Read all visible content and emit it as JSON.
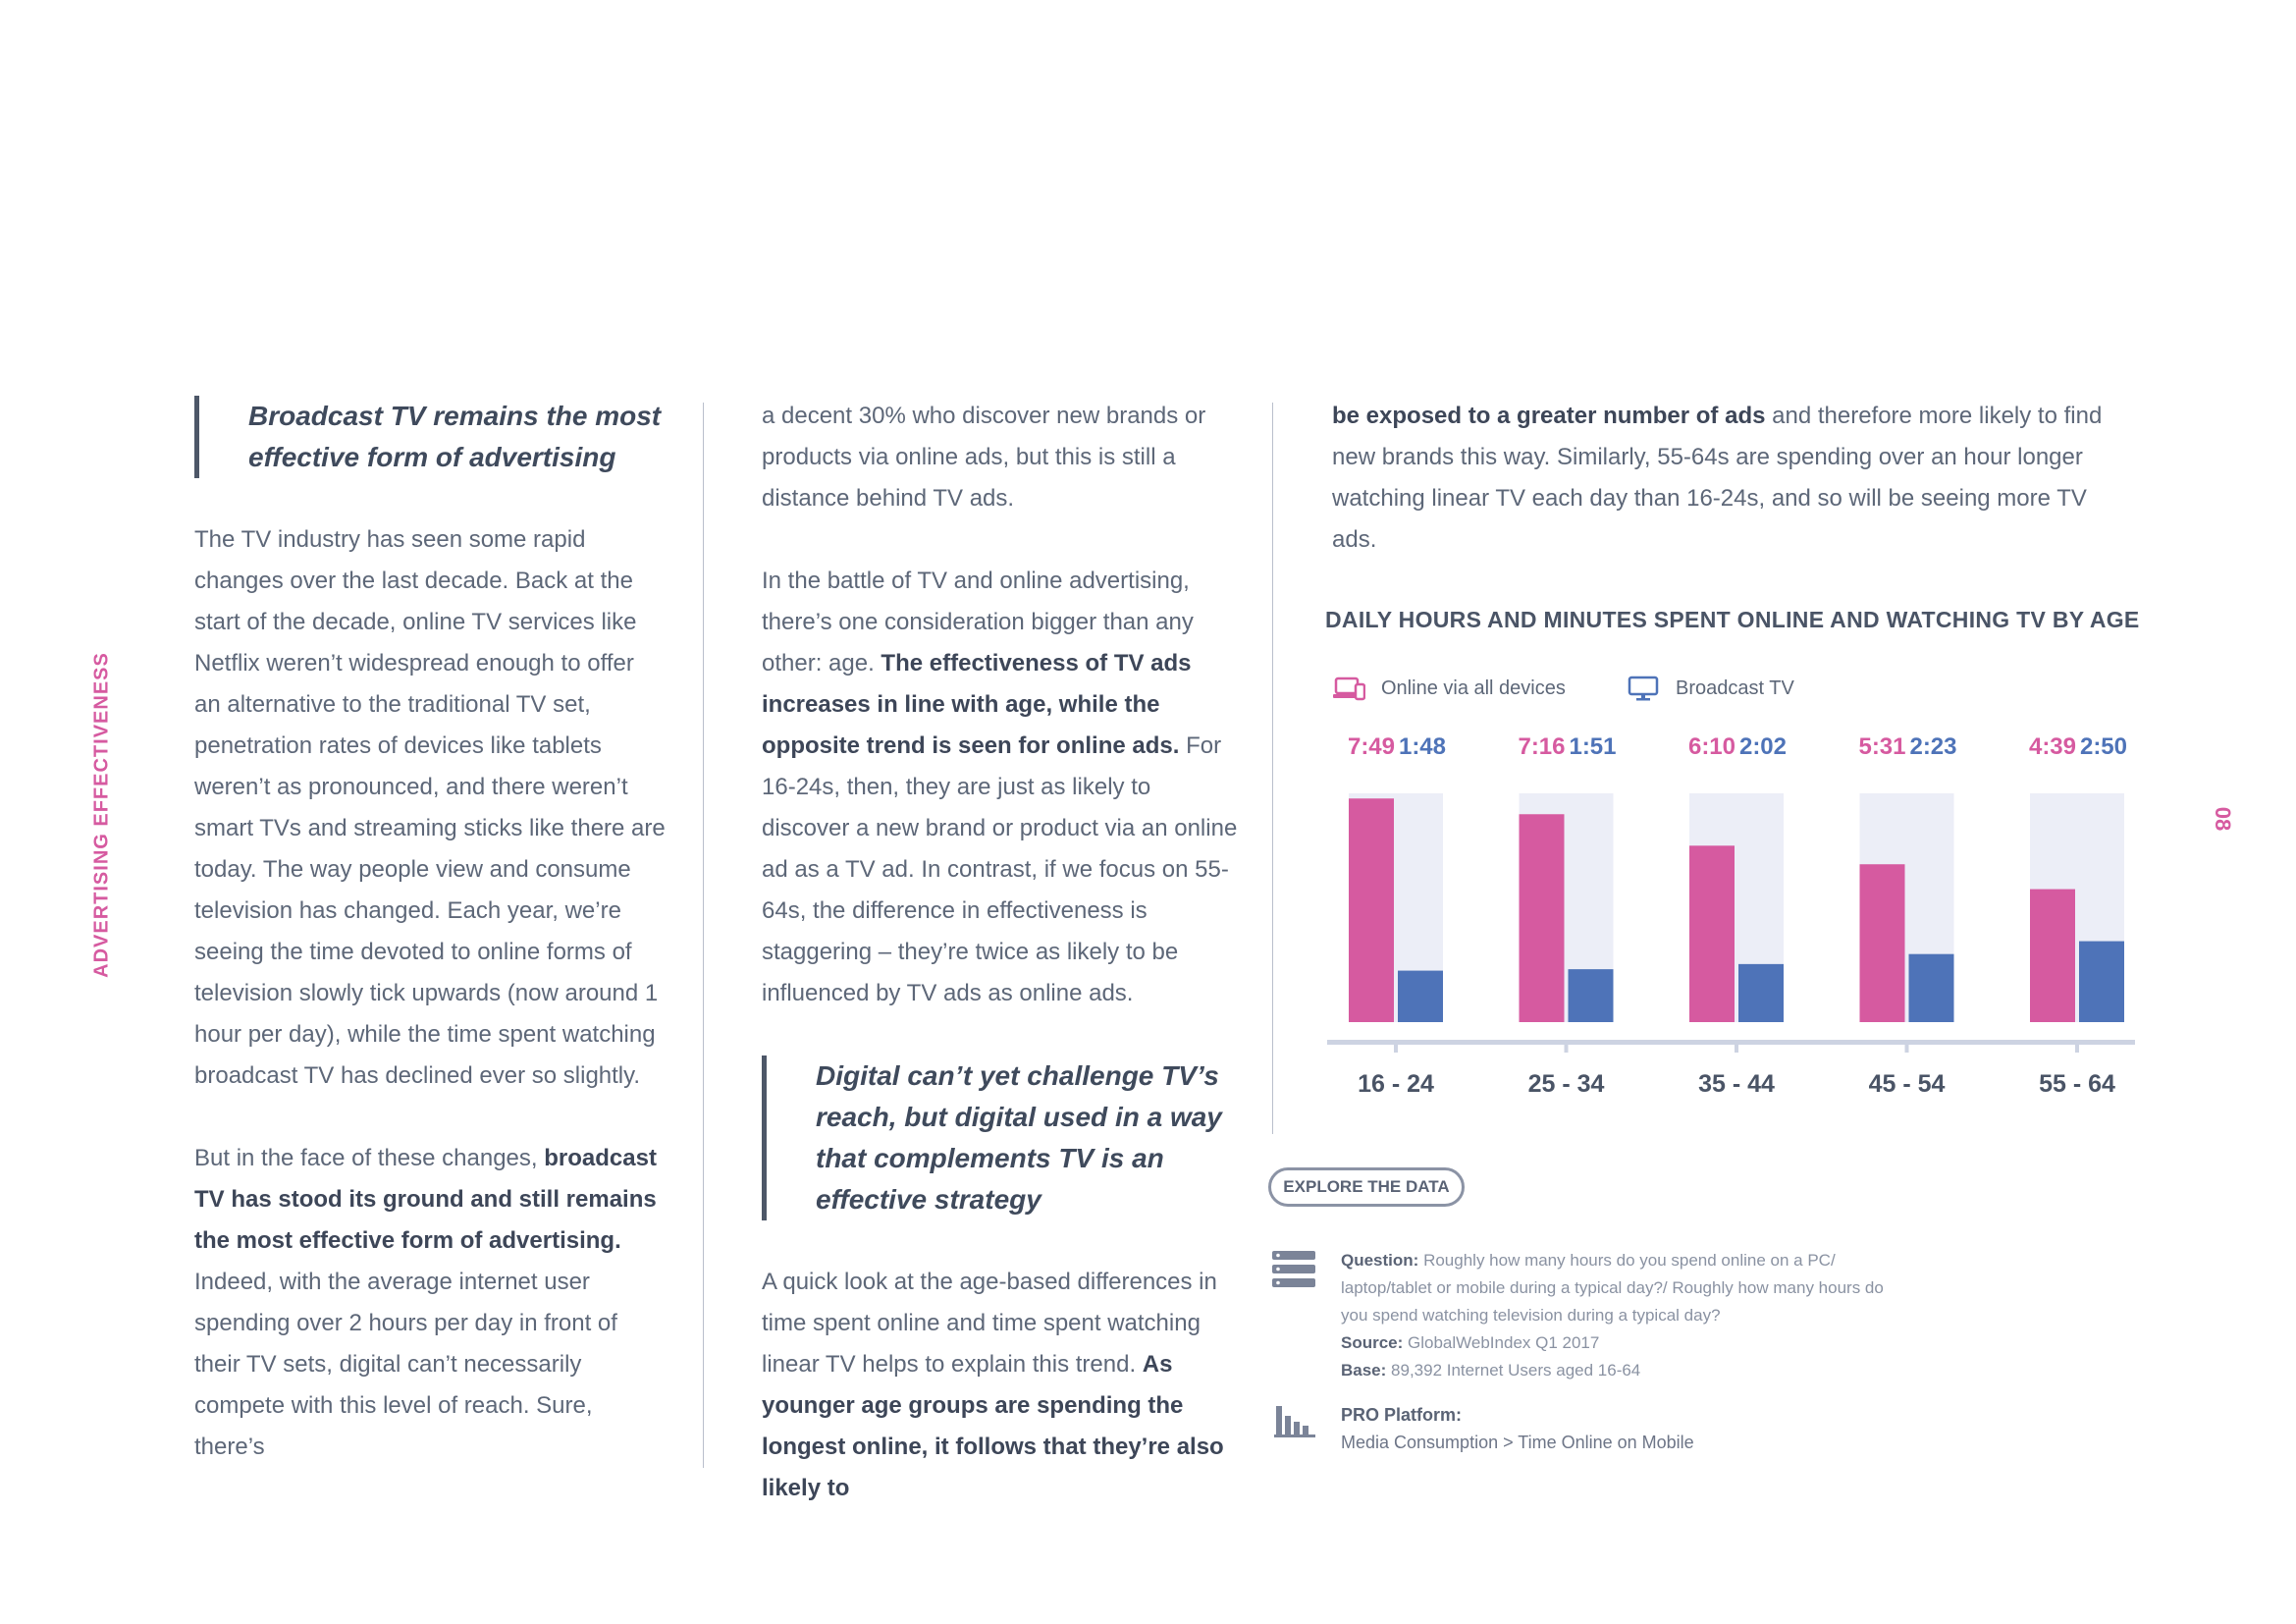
{
  "side_label": "ADVERTISING EFFECTIVENESS",
  "page_number": "08",
  "col1": {
    "pull_quote": "Broadcast TV remains the most effective form of advertising",
    "p1": "The TV industry has seen some rapid changes over the last decade. Back at the start of the decade, online TV services like Netflix weren’t widespread enough to offer an alternative to the traditional TV set, penetration rates of devices like tablets weren’t as pronounced, and there weren’t smart TVs and streaming sticks like there are today. The way people view and consume television has changed. Each year, we’re seeing the time devoted to online forms of television slowly tick upwards (now around 1 hour per day), while the time spent watching broadcast TV has declined ever so slightly.",
    "p2_a": "But in the face of these changes, ",
    "p2_b": "broadcast TV has stood its ground and still remains the most effective form of advertising.",
    "p2_c": " Indeed, with the average internet user spending over 2 hours per day in front of their TV sets, digital can’t necessarily compete with this level of reach. Sure, there’s"
  },
  "col2": {
    "p1": "a decent 30% who discover new brands or products via online ads, but this is still a distance behind TV ads.",
    "p2_a": "In the battle of TV and online advertising, there’s one consideration bigger than any other: age. ",
    "p2_b": "The effectiveness of TV ads increases in line with age, while the opposite trend is seen for online ads.",
    "p2_c": " For 16-24s, then, they are just as likely to discover a new brand or product via an online ad as a TV ad. In contrast, if we focus on 55-64s, the difference in effectiveness is staggering – they’re twice as likely to be influenced by TV ads as online ads.",
    "pull_quote": "Digital can’t yet challenge TV’s reach, but digital used in a way that complements TV is an effective strategy",
    "p3_a": "A quick look at the age-based differences in time spent online and time spent watching linear TV helps to explain this trend. ",
    "p3_b": "As younger age groups are spending the longest online, it follows that they’re also likely to"
  },
  "col3": {
    "p1_a": "be exposed to a greater number of ads",
    "p1_b": " and therefore more likely to find new brands this way. Similarly, 55-64s are spending over an hour longer watching linear TV each day than 16-24s, and so will be seeing more TV ads."
  },
  "chart_data": {
    "type": "bar",
    "title": "DAILY HOURS AND MINUTES SPENT ONLINE AND WATCHING TV BY AGE",
    "categories": [
      "16 - 24",
      "25 - 34",
      "35 - 44",
      "45 - 54",
      "55 - 64"
    ],
    "series": [
      {
        "name": "Online via all devices",
        "labels": [
          "7:49",
          "7:16",
          "6:10",
          "5:31",
          "4:39"
        ],
        "values": [
          7.82,
          7.27,
          6.17,
          5.52,
          4.65
        ],
        "color": "#d65aa0"
      },
      {
        "name": "Broadcast TV",
        "labels": [
          "1:48",
          "1:51",
          "2:02",
          "2:23",
          "2:50"
        ],
        "values": [
          1.8,
          1.85,
          2.03,
          2.38,
          2.83
        ],
        "color": "#4e73b8"
      }
    ],
    "ylim": [
      0,
      8
    ],
    "legend": "top-left",
    "background_color": "#eceef7",
    "axis_color": "#cdd3e2"
  },
  "explore_label": "EXPLORE THE DATA",
  "notes": {
    "question_label": "Question:",
    "question_text": " Roughly how many hours do you spend online on a PC/ laptop/tablet or mobile during a typical day?/ Roughly how many hours do you spend watching television during a typical day?",
    "source_label": "Source:",
    "source_text": " GlobalWebIndex Q1 2017",
    "base_label": "Base:",
    "base_text": " 89,392 Internet Users aged 16-64",
    "pro_label": "PRO Platform:",
    "pro_text": "Media Consumption > Time Online on Mobile"
  }
}
